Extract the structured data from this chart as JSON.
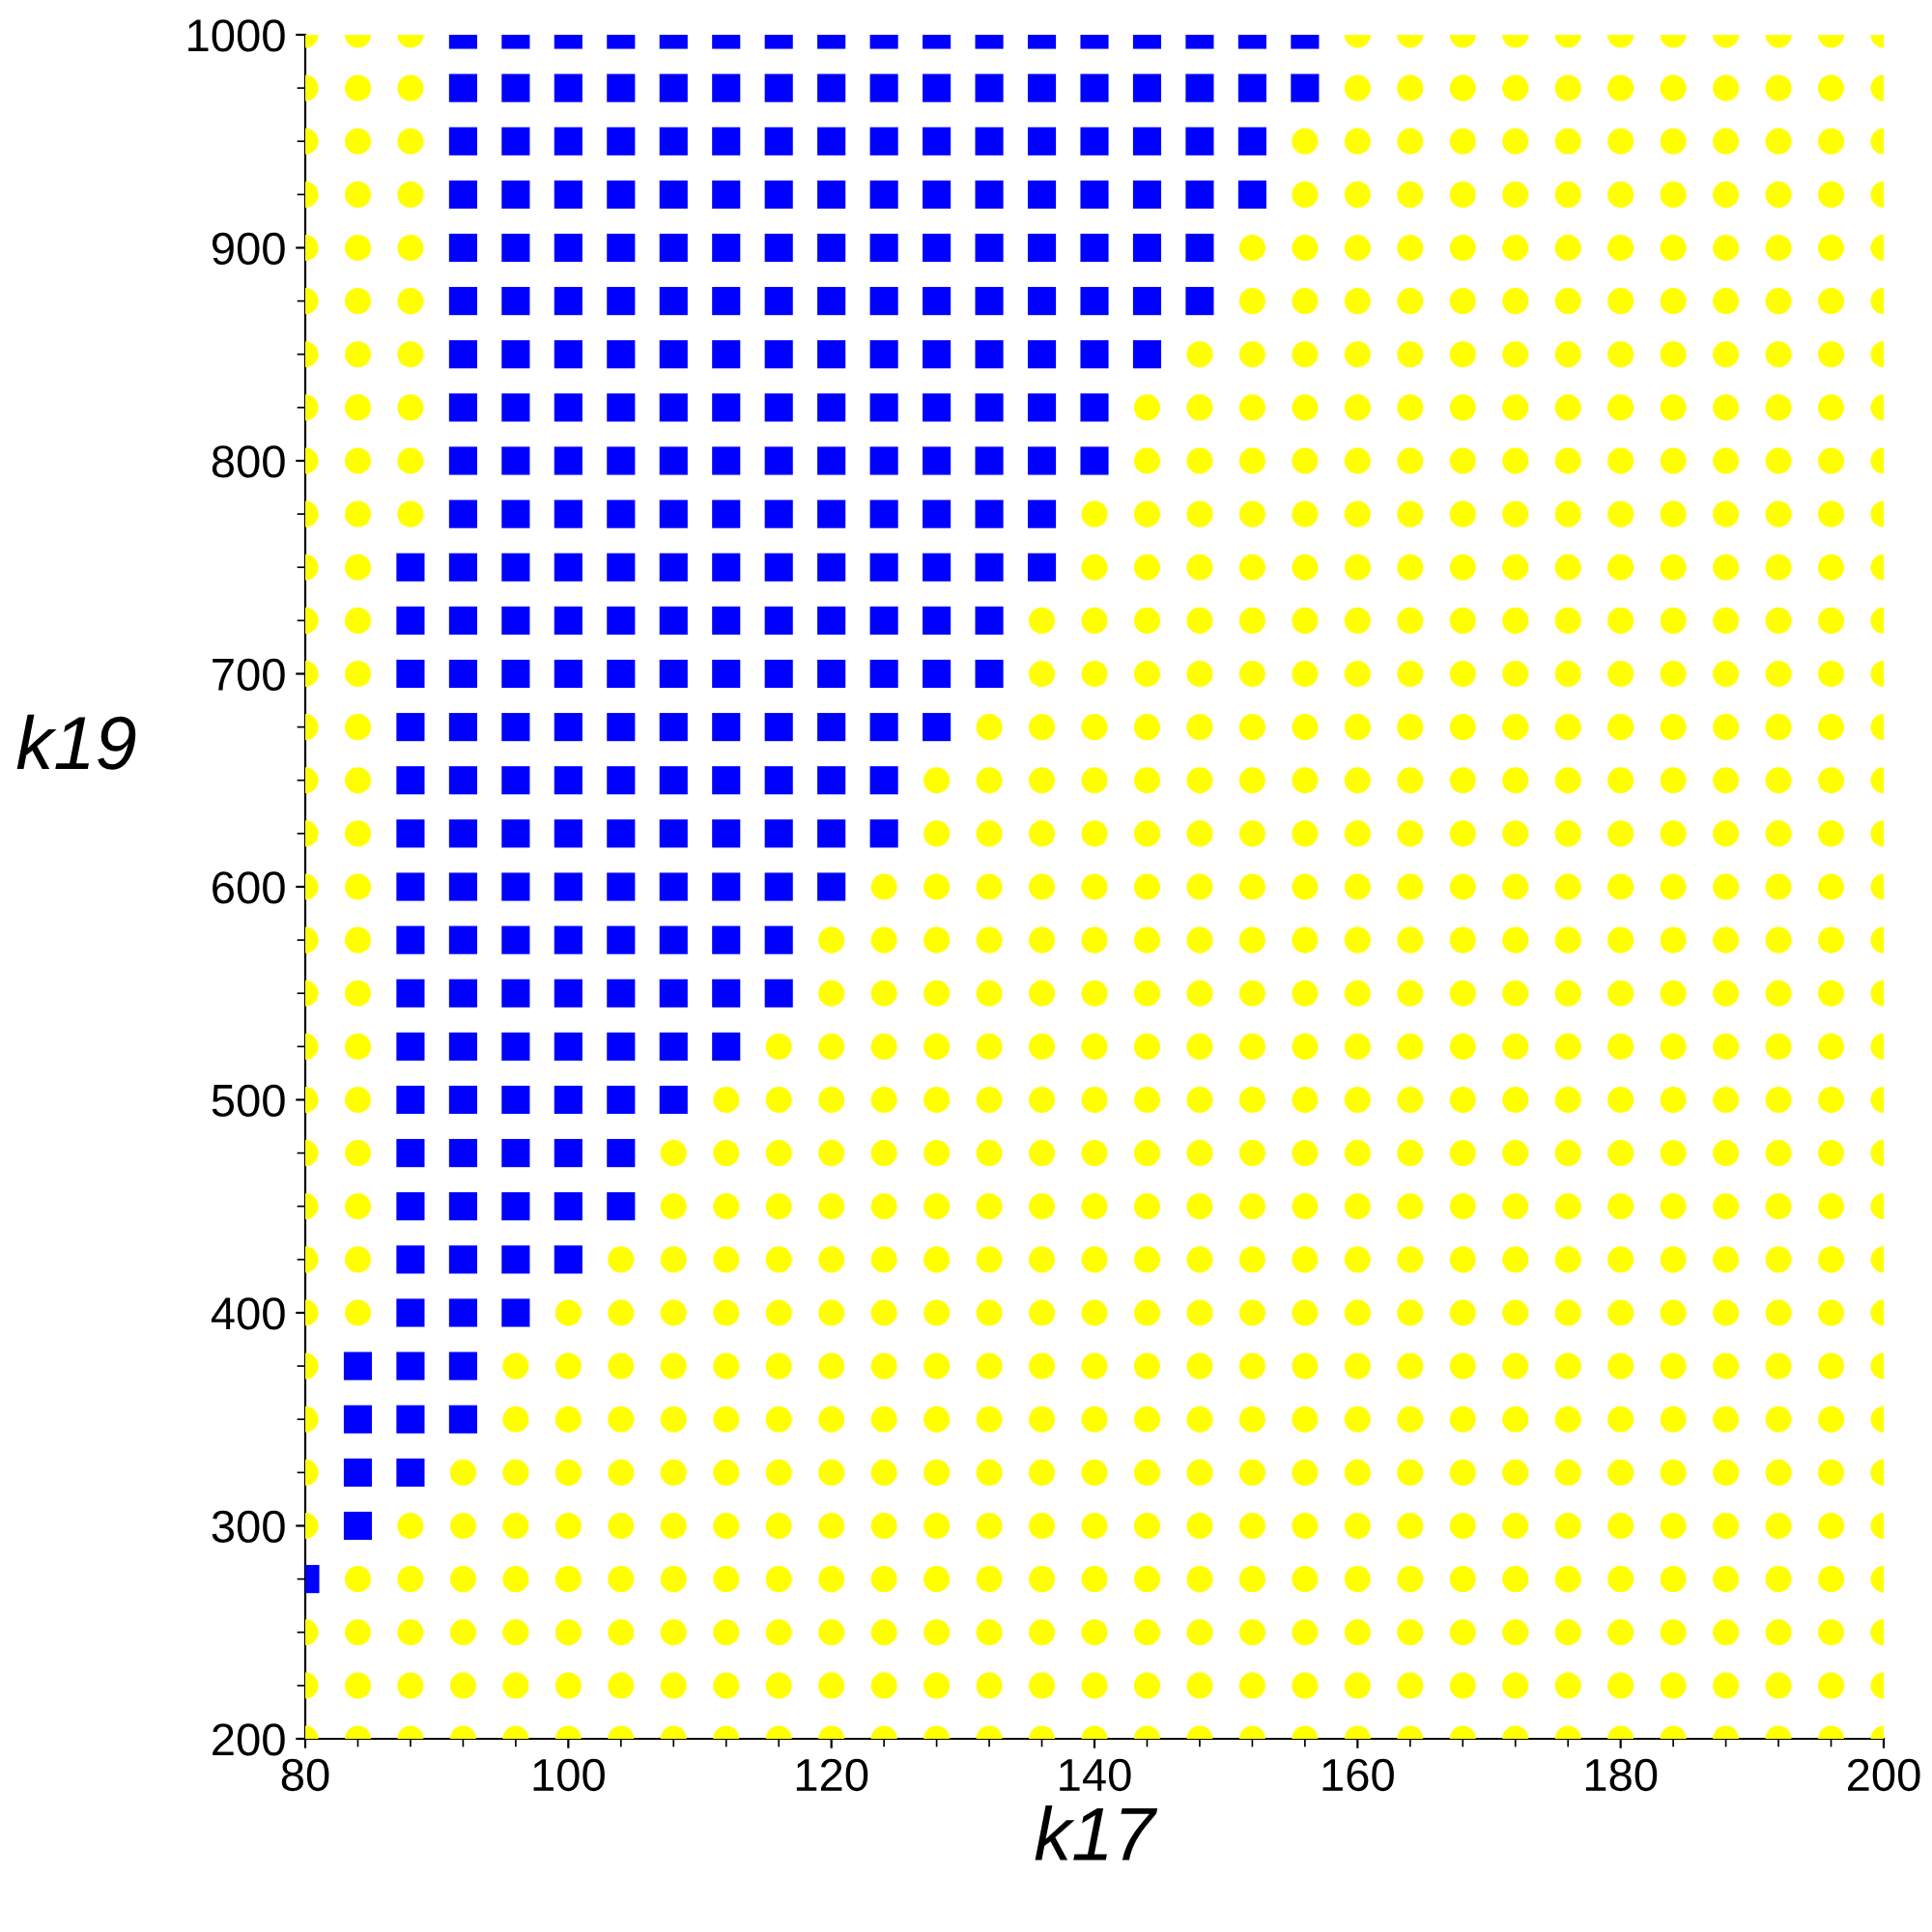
{
  "chart_data": {
    "type": "scatter",
    "xlabel": "k17",
    "ylabel": "k19",
    "xlim": [
      80,
      200
    ],
    "ylim": [
      200,
      1000
    ],
    "xticks": [
      80,
      100,
      120,
      140,
      160,
      180,
      200
    ],
    "yticks": [
      200,
      300,
      400,
      500,
      600,
      700,
      800,
      900,
      1000
    ],
    "grid": false,
    "series": [
      {
        "color": "#ffff00",
        "marker": "circle",
        "x": [
          80,
          84,
          88,
          160,
          164,
          168,
          172,
          176,
          180,
          184,
          188,
          192,
          196,
          200
        ],
        "values": [
          1000,
          1000,
          1000,
          1000,
          1000,
          1000,
          1000,
          1000,
          1000,
          1000,
          1000,
          1000,
          1000,
          1000
        ]
      },
      {
        "color": "#0000ff",
        "marker": "square",
        "x": [
          92,
          96,
          100,
          104,
          108,
          112,
          116,
          120,
          124,
          128,
          132,
          136,
          140,
          144,
          148,
          152,
          156
        ],
        "values": [
          1000,
          1000,
          1000,
          1000,
          1000,
          1000,
          1000,
          1000,
          1000,
          1000,
          1000,
          1000,
          1000,
          1000,
          1000,
          1000,
          1000
        ]
      },
      {
        "color": "#ffff00",
        "marker": "circle",
        "x": [
          80,
          84,
          88,
          160,
          164,
          168,
          172,
          176,
          180,
          184,
          188,
          192,
          196,
          200
        ],
        "values": [
          975,
          975,
          975,
          975,
          975,
          975,
          975,
          975,
          975,
          975,
          975,
          975,
          975,
          975
        ]
      },
      {
        "color": "#0000ff",
        "marker": "square",
        "x": [
          92,
          96,
          100,
          104,
          108,
          112,
          116,
          120,
          124,
          128,
          132,
          136,
          140,
          144,
          148,
          152,
          156
        ],
        "values": [
          975,
          975,
          975,
          975,
          975,
          975,
          975,
          975,
          975,
          975,
          975,
          975,
          975,
          975,
          975,
          975,
          975
        ]
      },
      {
        "color": "#ffff00",
        "marker": "circle",
        "x": [
          80,
          84,
          88,
          156,
          160,
          164,
          168,
          172,
          176,
          180,
          184,
          188,
          192,
          196,
          200
        ],
        "values": [
          950,
          950,
          950,
          950,
          950,
          950,
          950,
          950,
          950,
          950,
          950,
          950,
          950,
          950,
          950
        ]
      },
      {
        "color": "#0000ff",
        "marker": "square",
        "x": [
          92,
          96,
          100,
          104,
          108,
          112,
          116,
          120,
          124,
          128,
          132,
          136,
          140,
          144,
          148,
          152
        ],
        "values": [
          950,
          950,
          950,
          950,
          950,
          950,
          950,
          950,
          950,
          950,
          950,
          950,
          950,
          950,
          950,
          950
        ]
      },
      {
        "color": "#ffff00",
        "marker": "circle",
        "x": [
          80,
          84,
          88,
          156,
          160,
          164,
          168,
          172,
          176,
          180,
          184,
          188,
          192,
          196,
          200
        ],
        "values": [
          925,
          925,
          925,
          925,
          925,
          925,
          925,
          925,
          925,
          925,
          925,
          925,
          925,
          925,
          925
        ]
      },
      {
        "color": "#0000ff",
        "marker": "square",
        "x": [
          92,
          96,
          100,
          104,
          108,
          112,
          116,
          120,
          124,
          128,
          132,
          136,
          140,
          144,
          148,
          152
        ],
        "values": [
          925,
          925,
          925,
          925,
          925,
          925,
          925,
          925,
          925,
          925,
          925,
          925,
          925,
          925,
          925,
          925
        ]
      },
      {
        "color": "#ffff00",
        "marker": "circle",
        "x": [
          80,
          84,
          88,
          152,
          156,
          160,
          164,
          168,
          172,
          176,
          180,
          184,
          188,
          192,
          196,
          200
        ],
        "values": [
          900,
          900,
          900,
          900,
          900,
          900,
          900,
          900,
          900,
          900,
          900,
          900,
          900,
          900,
          900,
          900
        ]
      },
      {
        "color": "#0000ff",
        "marker": "square",
        "x": [
          92,
          96,
          100,
          104,
          108,
          112,
          116,
          120,
          124,
          128,
          132,
          136,
          140,
          144,
          148
        ],
        "values": [
          900,
          900,
          900,
          900,
          900,
          900,
          900,
          900,
          900,
          900,
          900,
          900,
          900,
          900,
          900
        ]
      },
      {
        "color": "#ffff00",
        "marker": "circle",
        "x": [
          80,
          84,
          88,
          152,
          156,
          160,
          164,
          168,
          172,
          176,
          180,
          184,
          188,
          192,
          196,
          200
        ],
        "values": [
          875,
          875,
          875,
          875,
          875,
          875,
          875,
          875,
          875,
          875,
          875,
          875,
          875,
          875,
          875,
          875
        ]
      },
      {
        "color": "#0000ff",
        "marker": "square",
        "x": [
          92,
          96,
          100,
          104,
          108,
          112,
          116,
          120,
          124,
          128,
          132,
          136,
          140,
          144,
          148
        ],
        "values": [
          875,
          875,
          875,
          875,
          875,
          875,
          875,
          875,
          875,
          875,
          875,
          875,
          875,
          875,
          875
        ]
      },
      {
        "color": "#ffff00",
        "marker": "circle",
        "x": [
          80,
          84,
          88,
          148,
          152,
          156,
          160,
          164,
          168,
          172,
          176,
          180,
          184,
          188,
          192,
          196,
          200
        ],
        "values": [
          850,
          850,
          850,
          850,
          850,
          850,
          850,
          850,
          850,
          850,
          850,
          850,
          850,
          850,
          850,
          850,
          850
        ]
      },
      {
        "color": "#0000ff",
        "marker": "square",
        "x": [
          92,
          96,
          100,
          104,
          108,
          112,
          116,
          120,
          124,
          128,
          132,
          136,
          140,
          144
        ],
        "values": [
          850,
          850,
          850,
          850,
          850,
          850,
          850,
          850,
          850,
          850,
          850,
          850,
          850,
          850
        ]
      },
      {
        "color": "#ffff00",
        "marker": "circle",
        "x": [
          80,
          84,
          88,
          144,
          148,
          152,
          156,
          160,
          164,
          168,
          172,
          176,
          180,
          184,
          188,
          192,
          196,
          200
        ],
        "values": [
          825,
          825,
          825,
          825,
          825,
          825,
          825,
          825,
          825,
          825,
          825,
          825,
          825,
          825,
          825,
          825,
          825,
          825
        ]
      },
      {
        "color": "#0000ff",
        "marker": "square",
        "x": [
          92,
          96,
          100,
          104,
          108,
          112,
          116,
          120,
          124,
          128,
          132,
          136,
          140
        ],
        "values": [
          825,
          825,
          825,
          825,
          825,
          825,
          825,
          825,
          825,
          825,
          825,
          825,
          825
        ]
      },
      {
        "color": "#ffff00",
        "marker": "circle",
        "x": [
          80,
          84,
          88,
          144,
          148,
          152,
          156,
          160,
          164,
          168,
          172,
          176,
          180,
          184,
          188,
          192,
          196,
          200
        ],
        "values": [
          800,
          800,
          800,
          800,
          800,
          800,
          800,
          800,
          800,
          800,
          800,
          800,
          800,
          800,
          800,
          800,
          800,
          800
        ]
      },
      {
        "color": "#0000ff",
        "marker": "square",
        "x": [
          92,
          96,
          100,
          104,
          108,
          112,
          116,
          120,
          124,
          128,
          132,
          136,
          140
        ],
        "values": [
          800,
          800,
          800,
          800,
          800,
          800,
          800,
          800,
          800,
          800,
          800,
          800,
          800
        ]
      },
      {
        "color": "#ffff00",
        "marker": "circle",
        "x": [
          80,
          84,
          88,
          140,
          144,
          148,
          152,
          156,
          160,
          164,
          168,
          172,
          176,
          180,
          184,
          188,
          192,
          196,
          200
        ],
        "values": [
          775,
          775,
          775,
          775,
          775,
          775,
          775,
          775,
          775,
          775,
          775,
          775,
          775,
          775,
          775,
          775,
          775,
          775,
          775
        ]
      },
      {
        "color": "#0000ff",
        "marker": "square",
        "x": [
          92,
          96,
          100,
          104,
          108,
          112,
          116,
          120,
          124,
          128,
          132,
          136
        ],
        "values": [
          775,
          775,
          775,
          775,
          775,
          775,
          775,
          775,
          775,
          775,
          775,
          775
        ]
      },
      {
        "color": "#ffff00",
        "marker": "circle",
        "x": [
          80,
          84,
          140,
          144,
          148,
          152,
          156,
          160,
          164,
          168,
          172,
          176,
          180,
          184,
          188,
          192,
          196,
          200
        ],
        "values": [
          750,
          750,
          750,
          750,
          750,
          750,
          750,
          750,
          750,
          750,
          750,
          750,
          750,
          750,
          750,
          750,
          750,
          750
        ]
      },
      {
        "color": "#0000ff",
        "marker": "square",
        "x": [
          88,
          92,
          96,
          100,
          104,
          108,
          112,
          116,
          120,
          124,
          128,
          132,
          136
        ],
        "values": [
          750,
          750,
          750,
          750,
          750,
          750,
          750,
          750,
          750,
          750,
          750,
          750,
          750
        ]
      },
      {
        "color": "#ffff00",
        "marker": "circle",
        "x": [
          80,
          84,
          136,
          140,
          144,
          148,
          152,
          156,
          160,
          164,
          168,
          172,
          176,
          180,
          184,
          188,
          192,
          196,
          200
        ],
        "values": [
          725,
          725,
          725,
          725,
          725,
          725,
          725,
          725,
          725,
          725,
          725,
          725,
          725,
          725,
          725,
          725,
          725,
          725,
          725
        ]
      },
      {
        "color": "#0000ff",
        "marker": "square",
        "x": [
          88,
          92,
          96,
          100,
          104,
          108,
          112,
          116,
          120,
          124,
          128,
          132
        ],
        "values": [
          725,
          725,
          725,
          725,
          725,
          725,
          725,
          725,
          725,
          725,
          725,
          725
        ]
      },
      {
        "color": "#ffff00",
        "marker": "circle",
        "x": [
          80,
          84,
          136,
          140,
          144,
          148,
          152,
          156,
          160,
          164,
          168,
          172,
          176,
          180,
          184,
          188,
          192,
          196,
          200
        ],
        "values": [
          700,
          700,
          700,
          700,
          700,
          700,
          700,
          700,
          700,
          700,
          700,
          700,
          700,
          700,
          700,
          700,
          700,
          700,
          700
        ]
      },
      {
        "color": "#0000ff",
        "marker": "square",
        "x": [
          88,
          92,
          96,
          100,
          104,
          108,
          112,
          116,
          120,
          124,
          128,
          132
        ],
        "values": [
          700,
          700,
          700,
          700,
          700,
          700,
          700,
          700,
          700,
          700,
          700,
          700
        ]
      },
      {
        "color": "#ffff00",
        "marker": "circle",
        "x": [
          80,
          84,
          132,
          136,
          140,
          144,
          148,
          152,
          156,
          160,
          164,
          168,
          172,
          176,
          180,
          184,
          188,
          192,
          196,
          200
        ],
        "values": [
          675,
          675,
          675,
          675,
          675,
          675,
          675,
          675,
          675,
          675,
          675,
          675,
          675,
          675,
          675,
          675,
          675,
          675,
          675,
          675
        ]
      },
      {
        "color": "#0000ff",
        "marker": "square",
        "x": [
          88,
          92,
          96,
          100,
          104,
          108,
          112,
          116,
          120,
          124,
          128
        ],
        "values": [
          675,
          675,
          675,
          675,
          675,
          675,
          675,
          675,
          675,
          675,
          675
        ]
      },
      {
        "color": "#ffff00",
        "marker": "circle",
        "x": [
          80,
          84,
          128,
          132,
          136,
          140,
          144,
          148,
          152,
          156,
          160,
          164,
          168,
          172,
          176,
          180,
          184,
          188,
          192,
          196,
          200
        ],
        "values": [
          650,
          650,
          650,
          650,
          650,
          650,
          650,
          650,
          650,
          650,
          650,
          650,
          650,
          650,
          650,
          650,
          650,
          650,
          650,
          650,
          650
        ]
      },
      {
        "color": "#0000ff",
        "marker": "square",
        "x": [
          88,
          92,
          96,
          100,
          104,
          108,
          112,
          116,
          120,
          124
        ],
        "values": [
          650,
          650,
          650,
          650,
          650,
          650,
          650,
          650,
          650,
          650
        ]
      },
      {
        "color": "#ffff00",
        "marker": "circle",
        "x": [
          80,
          84,
          128,
          132,
          136,
          140,
          144,
          148,
          152,
          156,
          160,
          164,
          168,
          172,
          176,
          180,
          184,
          188,
          192,
          196,
          200
        ],
        "values": [
          625,
          625,
          625,
          625,
          625,
          625,
          625,
          625,
          625,
          625,
          625,
          625,
          625,
          625,
          625,
          625,
          625,
          625,
          625,
          625,
          625
        ]
      },
      {
        "color": "#0000ff",
        "marker": "square",
        "x": [
          88,
          92,
          96,
          100,
          104,
          108,
          112,
          116,
          120,
          124
        ],
        "values": [
          625,
          625,
          625,
          625,
          625,
          625,
          625,
          625,
          625,
          625
        ]
      },
      {
        "color": "#ffff00",
        "marker": "circle",
        "x": [
          80,
          84,
          124,
          128,
          132,
          136,
          140,
          144,
          148,
          152,
          156,
          160,
          164,
          168,
          172,
          176,
          180,
          184,
          188,
          192,
          196,
          200
        ],
        "values": [
          600,
          600,
          600,
          600,
          600,
          600,
          600,
          600,
          600,
          600,
          600,
          600,
          600,
          600,
          600,
          600,
          600,
          600,
          600,
          600,
          600,
          600
        ]
      },
      {
        "color": "#0000ff",
        "marker": "square",
        "x": [
          88,
          92,
          96,
          100,
          104,
          108,
          112,
          116,
          120
        ],
        "values": [
          600,
          600,
          600,
          600,
          600,
          600,
          600,
          600,
          600
        ]
      },
      {
        "color": "#ffff00",
        "marker": "circle",
        "x": [
          80,
          84,
          120,
          124,
          128,
          132,
          136,
          140,
          144,
          148,
          152,
          156,
          160,
          164,
          168,
          172,
          176,
          180,
          184,
          188,
          192,
          196,
          200
        ],
        "values": [
          575,
          575,
          575,
          575,
          575,
          575,
          575,
          575,
          575,
          575,
          575,
          575,
          575,
          575,
          575,
          575,
          575,
          575,
          575,
          575,
          575,
          575,
          575
        ]
      },
      {
        "color": "#0000ff",
        "marker": "square",
        "x": [
          88,
          92,
          96,
          100,
          104,
          108,
          112,
          116
        ],
        "values": [
          575,
          575,
          575,
          575,
          575,
          575,
          575,
          575
        ]
      },
      {
        "color": "#ffff00",
        "marker": "circle",
        "x": [
          80,
          84,
          120,
          124,
          128,
          132,
          136,
          140,
          144,
          148,
          152,
          156,
          160,
          164,
          168,
          172,
          176,
          180,
          184,
          188,
          192,
          196,
          200
        ],
        "values": [
          550,
          550,
          550,
          550,
          550,
          550,
          550,
          550,
          550,
          550,
          550,
          550,
          550,
          550,
          550,
          550,
          550,
          550,
          550,
          550,
          550,
          550,
          550
        ]
      },
      {
        "color": "#0000ff",
        "marker": "square",
        "x": [
          88,
          92,
          96,
          100,
          104,
          108,
          112,
          116
        ],
        "values": [
          550,
          550,
          550,
          550,
          550,
          550,
          550,
          550
        ]
      },
      {
        "color": "#ffff00",
        "marker": "circle",
        "x": [
          80,
          84,
          116,
          120,
          124,
          128,
          132,
          136,
          140,
          144,
          148,
          152,
          156,
          160,
          164,
          168,
          172,
          176,
          180,
          184,
          188,
          192,
          196,
          200
        ],
        "values": [
          525,
          525,
          525,
          525,
          525,
          525,
          525,
          525,
          525,
          525,
          525,
          525,
          525,
          525,
          525,
          525,
          525,
          525,
          525,
          525,
          525,
          525,
          525,
          525
        ]
      },
      {
        "color": "#0000ff",
        "marker": "square",
        "x": [
          88,
          92,
          96,
          100,
          104,
          108,
          112
        ],
        "values": [
          525,
          525,
          525,
          525,
          525,
          525,
          525
        ]
      },
      {
        "color": "#ffff00",
        "marker": "circle",
        "x": [
          80,
          84,
          112,
          116,
          120,
          124,
          128,
          132,
          136,
          140,
          144,
          148,
          152,
          156,
          160,
          164,
          168,
          172,
          176,
          180,
          184,
          188,
          192,
          196,
          200
        ],
        "values": [
          500,
          500,
          500,
          500,
          500,
          500,
          500,
          500,
          500,
          500,
          500,
          500,
          500,
          500,
          500,
          500,
          500,
          500,
          500,
          500,
          500,
          500,
          500,
          500,
          500
        ]
      },
      {
        "color": "#0000ff",
        "marker": "square",
        "x": [
          88,
          92,
          96,
          100,
          104,
          108
        ],
        "values": [
          500,
          500,
          500,
          500,
          500,
          500
        ]
      },
      {
        "color": "#ffff00",
        "marker": "circle",
        "x": [
          80,
          84,
          108,
          112,
          116,
          120,
          124,
          128,
          132,
          136,
          140,
          144,
          148,
          152,
          156,
          160,
          164,
          168,
          172,
          176,
          180,
          184,
          188,
          192,
          196,
          200
        ],
        "values": [
          475,
          475,
          475,
          475,
          475,
          475,
          475,
          475,
          475,
          475,
          475,
          475,
          475,
          475,
          475,
          475,
          475,
          475,
          475,
          475,
          475,
          475,
          475,
          475,
          475,
          475
        ]
      },
      {
        "color": "#0000ff",
        "marker": "square",
        "x": [
          88,
          92,
          96,
          100,
          104
        ],
        "values": [
          475,
          475,
          475,
          475,
          475
        ]
      },
      {
        "color": "#ffff00",
        "marker": "circle",
        "x": [
          80,
          84,
          108,
          112,
          116,
          120,
          124,
          128,
          132,
          136,
          140,
          144,
          148,
          152,
          156,
          160,
          164,
          168,
          172,
          176,
          180,
          184,
          188,
          192,
          196,
          200
        ],
        "values": [
          450,
          450,
          450,
          450,
          450,
          450,
          450,
          450,
          450,
          450,
          450,
          450,
          450,
          450,
          450,
          450,
          450,
          450,
          450,
          450,
          450,
          450,
          450,
          450,
          450,
          450
        ]
      },
      {
        "color": "#0000ff",
        "marker": "square",
        "x": [
          88,
          92,
          96,
          100,
          104
        ],
        "values": [
          450,
          450,
          450,
          450,
          450
        ]
      },
      {
        "color": "#ffff00",
        "marker": "circle",
        "x": [
          80,
          84,
          104,
          108,
          112,
          116,
          120,
          124,
          128,
          132,
          136,
          140,
          144,
          148,
          152,
          156,
          160,
          164,
          168,
          172,
          176,
          180,
          184,
          188,
          192,
          196,
          200
        ],
        "values": [
          425,
          425,
          425,
          425,
          425,
          425,
          425,
          425,
          425,
          425,
          425,
          425,
          425,
          425,
          425,
          425,
          425,
          425,
          425,
          425,
          425,
          425,
          425,
          425,
          425,
          425,
          425
        ]
      },
      {
        "color": "#0000ff",
        "marker": "square",
        "x": [
          88,
          92,
          96,
          100
        ],
        "values": [
          425,
          425,
          425,
          425
        ]
      },
      {
        "color": "#ffff00",
        "marker": "circle",
        "x": [
          80,
          84,
          100,
          104,
          108,
          112,
          116,
          120,
          124,
          128,
          132,
          136,
          140,
          144,
          148,
          152,
          156,
          160,
          164,
          168,
          172,
          176,
          180,
          184,
          188,
          192,
          196,
          200
        ],
        "values": [
          400,
          400,
          400,
          400,
          400,
          400,
          400,
          400,
          400,
          400,
          400,
          400,
          400,
          400,
          400,
          400,
          400,
          400,
          400,
          400,
          400,
          400,
          400,
          400,
          400,
          400,
          400,
          400
        ]
      },
      {
        "color": "#0000ff",
        "marker": "square",
        "x": [
          88,
          92,
          96
        ],
        "values": [
          400,
          400,
          400
        ]
      },
      {
        "color": "#ffff00",
        "marker": "circle",
        "x": [
          80,
          96,
          100,
          104,
          108,
          112,
          116,
          120,
          124,
          128,
          132,
          136,
          140,
          144,
          148,
          152,
          156,
          160,
          164,
          168,
          172,
          176,
          180,
          184,
          188,
          192,
          196,
          200
        ],
        "values": [
          375,
          375,
          375,
          375,
          375,
          375,
          375,
          375,
          375,
          375,
          375,
          375,
          375,
          375,
          375,
          375,
          375,
          375,
          375,
          375,
          375,
          375,
          375,
          375,
          375,
          375,
          375,
          375
        ]
      },
      {
        "color": "#0000ff",
        "marker": "square",
        "x": [
          84,
          88,
          92
        ],
        "values": [
          375,
          375,
          375
        ]
      },
      {
        "color": "#ffff00",
        "marker": "circle",
        "x": [
          80,
          96,
          100,
          104,
          108,
          112,
          116,
          120,
          124,
          128,
          132,
          136,
          140,
          144,
          148,
          152,
          156,
          160,
          164,
          168,
          172,
          176,
          180,
          184,
          188,
          192,
          196,
          200
        ],
        "values": [
          350,
          350,
          350,
          350,
          350,
          350,
          350,
          350,
          350,
          350,
          350,
          350,
          350,
          350,
          350,
          350,
          350,
          350,
          350,
          350,
          350,
          350,
          350,
          350,
          350,
          350,
          350,
          350
        ]
      },
      {
        "color": "#0000ff",
        "marker": "square",
        "x": [
          84,
          88,
          92
        ],
        "values": [
          350,
          350,
          350
        ]
      },
      {
        "color": "#ffff00",
        "marker": "circle",
        "x": [
          80,
          92,
          96,
          100,
          104,
          108,
          112,
          116,
          120,
          124,
          128,
          132,
          136,
          140,
          144,
          148,
          152,
          156,
          160,
          164,
          168,
          172,
          176,
          180,
          184,
          188,
          192,
          196,
          200
        ],
        "values": [
          325,
          325,
          325,
          325,
          325,
          325,
          325,
          325,
          325,
          325,
          325,
          325,
          325,
          325,
          325,
          325,
          325,
          325,
          325,
          325,
          325,
          325,
          325,
          325,
          325,
          325,
          325,
          325,
          325
        ]
      },
      {
        "color": "#0000ff",
        "marker": "square",
        "x": [
          84,
          88
        ],
        "values": [
          325,
          325
        ]
      },
      {
        "color": "#ffff00",
        "marker": "circle",
        "x": [
          80,
          88,
          92,
          96,
          100,
          104,
          108,
          112,
          116,
          120,
          124,
          128,
          132,
          136,
          140,
          144,
          148,
          152,
          156,
          160,
          164,
          168,
          172,
          176,
          180,
          184,
          188,
          192,
          196,
          200
        ],
        "values": [
          300,
          300,
          300,
          300,
          300,
          300,
          300,
          300,
          300,
          300,
          300,
          300,
          300,
          300,
          300,
          300,
          300,
          300,
          300,
          300,
          300,
          300,
          300,
          300,
          300,
          300,
          300,
          300,
          300,
          300
        ]
      },
      {
        "color": "#0000ff",
        "marker": "square",
        "x": [
          84
        ],
        "values": [
          300
        ]
      },
      {
        "color": "#ffff00",
        "marker": "circle",
        "x": [
          84,
          88,
          92,
          96,
          100,
          104,
          108,
          112,
          116,
          120,
          124,
          128,
          132,
          136,
          140,
          144,
          148,
          152,
          156,
          160,
          164,
          168,
          172,
          176,
          180,
          184,
          188,
          192,
          196,
          200
        ],
        "values": [
          275,
          275,
          275,
          275,
          275,
          275,
          275,
          275,
          275,
          275,
          275,
          275,
          275,
          275,
          275,
          275,
          275,
          275,
          275,
          275,
          275,
          275,
          275,
          275,
          275,
          275,
          275,
          275,
          275,
          275
        ]
      },
      {
        "color": "#0000ff",
        "marker": "square",
        "x": [
          80
        ],
        "values": [
          275
        ]
      },
      {
        "color": "#ffff00",
        "marker": "circle",
        "x": [
          80,
          84,
          88,
          92,
          96,
          100,
          104,
          108,
          112,
          116,
          120,
          124,
          128,
          132,
          136,
          140,
          144,
          148,
          152,
          156,
          160,
          164,
          168,
          172,
          176,
          180,
          184,
          188,
          192,
          196,
          200
        ],
        "values": [
          250,
          250,
          250,
          250,
          250,
          250,
          250,
          250,
          250,
          250,
          250,
          250,
          250,
          250,
          250,
          250,
          250,
          250,
          250,
          250,
          250,
          250,
          250,
          250,
          250,
          250,
          250,
          250,
          250,
          250,
          250
        ]
      },
      {
        "color": "#ffff00",
        "marker": "circle",
        "x": [
          80,
          84,
          88,
          92,
          96,
          100,
          104,
          108,
          112,
          116,
          120,
          124,
          128,
          132,
          136,
          140,
          144,
          148,
          152,
          156,
          160,
          164,
          168,
          172,
          176,
          180,
          184,
          188,
          192,
          196,
          200
        ],
        "values": [
          225,
          225,
          225,
          225,
          225,
          225,
          225,
          225,
          225,
          225,
          225,
          225,
          225,
          225,
          225,
          225,
          225,
          225,
          225,
          225,
          225,
          225,
          225,
          225,
          225,
          225,
          225,
          225,
          225,
          225,
          225
        ]
      },
      {
        "color": "#ffff00",
        "marker": "circle",
        "x": [
          80,
          84,
          88,
          92,
          96,
          100,
          104,
          108,
          112,
          116,
          120,
          124,
          128,
          132,
          136,
          140,
          144,
          148,
          152,
          156,
          160,
          164,
          168,
          172,
          176,
          180,
          184,
          188,
          192,
          196,
          200
        ],
        "values": [
          200,
          200,
          200,
          200,
          200,
          200,
          200,
          200,
          200,
          200,
          200,
          200,
          200,
          200,
          200,
          200,
          200,
          200,
          200,
          200,
          200,
          200,
          200,
          200,
          200,
          200,
          200,
          200,
          200,
          200,
          200
        ]
      }
    ]
  }
}
